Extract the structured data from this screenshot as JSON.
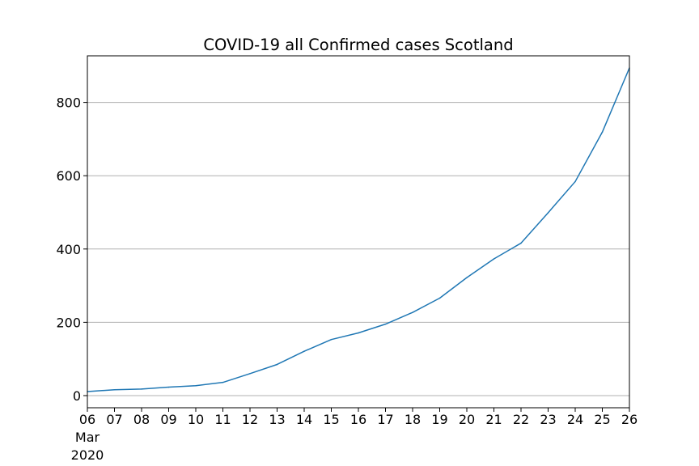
{
  "chart_data": {
    "type": "line",
    "title": "COVID-19 all Confirmed cases Scotland",
    "xlabel": "",
    "ylabel": "",
    "x_tick_labels": [
      "06",
      "07",
      "08",
      "09",
      "10",
      "11",
      "12",
      "13",
      "14",
      "15",
      "16",
      "17",
      "18",
      "19",
      "20",
      "21",
      "22",
      "23",
      "24",
      "25",
      "26"
    ],
    "x_secondary_label": [
      "Mar",
      "2020"
    ],
    "x": [
      "2020-03-06",
      "2020-03-07",
      "2020-03-08",
      "2020-03-09",
      "2020-03-10",
      "2020-03-11",
      "2020-03-12",
      "2020-03-13",
      "2020-03-14",
      "2020-03-15",
      "2020-03-16",
      "2020-03-17",
      "2020-03-18",
      "2020-03-19",
      "2020-03-20",
      "2020-03-21",
      "2020-03-22",
      "2020-03-23",
      "2020-03-24",
      "2020-03-25",
      "2020-03-26"
    ],
    "series": [
      {
        "values": [
          11,
          16,
          18,
          23,
          27,
          36,
          60,
          85,
          121,
          153,
          171,
          195,
          227,
          266,
          322,
          373,
          416,
          499,
          584,
          719,
          894
        ],
        "color": "#1f77b4"
      }
    ],
    "yticks": [
      0,
      200,
      400,
      600,
      800
    ],
    "ylim": [
      -33.15,
      927.15
    ],
    "grid": "horizontal",
    "legend": "none"
  }
}
